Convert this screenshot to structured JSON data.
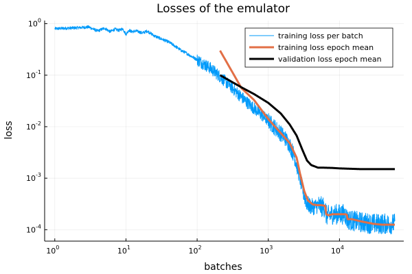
{
  "chart_data": {
    "type": "line",
    "title": "Losses of the emulator",
    "xlabel": "batches",
    "ylabel": "loss",
    "xscale": "log",
    "yscale": "log",
    "xlim": [
      0.72,
      80000
    ],
    "ylim": [
      6e-05,
      1.15
    ],
    "grid": true,
    "legend_position": "top-right",
    "xticks": [
      {
        "base": "10",
        "exp": "0",
        "value": 1
      },
      {
        "base": "10",
        "exp": "1",
        "value": 10
      },
      {
        "base": "10",
        "exp": "2",
        "value": 100
      },
      {
        "base": "10",
        "exp": "3",
        "value": 1000
      },
      {
        "base": "10",
        "exp": "4",
        "value": 10000
      }
    ],
    "yticks": [
      {
        "base": "10",
        "exp": "0",
        "value": 1
      },
      {
        "base": "10",
        "exp": "-1",
        "value": 0.1
      },
      {
        "base": "10",
        "exp": "-2",
        "value": 0.01
      },
      {
        "base": "10",
        "exp": "-3",
        "value": 0.001
      },
      {
        "base": "10",
        "exp": "-4",
        "value": 0.0001
      }
    ],
    "series": [
      {
        "name": "training loss per batch",
        "color": "#009AFA",
        "width": 1,
        "noise": true,
        "x": [
          1,
          2,
          3,
          4,
          5,
          6,
          7,
          8,
          9,
          10,
          11,
          12,
          14,
          17,
          20,
          25,
          30,
          40,
          50,
          60,
          70,
          80,
          100,
          120,
          150,
          200,
          250,
          300,
          400,
          500,
          700,
          1000,
          1300,
          1700,
          2000,
          2300,
          2600,
          2900,
          3200,
          3500,
          4000,
          4500,
          5000,
          5500,
          6300,
          6500,
          7000,
          8000,
          9000,
          10000,
          11000,
          12000,
          13000,
          14000,
          15000,
          20000,
          30000,
          45000,
          60000
        ],
        "y": [
          0.8,
          0.83,
          0.86,
          0.72,
          0.82,
          0.7,
          0.78,
          0.74,
          0.8,
          0.62,
          0.75,
          0.7,
          0.72,
          0.66,
          0.72,
          0.58,
          0.52,
          0.44,
          0.36,
          0.3,
          0.27,
          0.24,
          0.2,
          0.17,
          0.14,
          0.1,
          0.075,
          0.06,
          0.04,
          0.03,
          0.02,
          0.013,
          0.009,
          0.0062,
          0.0044,
          0.0028,
          0.0015,
          0.0008,
          0.00045,
          0.00032,
          0.00028,
          0.00028,
          0.0003,
          0.00028,
          0.00027,
          0.00019,
          0.00019,
          0.0002,
          0.0002,
          0.0002,
          0.0002,
          0.0002,
          0.000155,
          0.000155,
          0.00015,
          0.00014,
          0.00013,
          0.00013,
          0.00013
        ]
      },
      {
        "name": "training loss epoch mean",
        "color": "#E26F46",
        "width": 3,
        "noise": false,
        "x": [
          210,
          420,
          630,
          1000,
          1500,
          2000,
          2500,
          2800,
          3200,
          3600,
          4200,
          4800,
          5500,
          6300,
          6500,
          7000,
          8000,
          10000,
          12000,
          12700,
          13000,
          15000,
          20000,
          30000,
          40000,
          60000
        ],
        "y": [
          0.3,
          0.056,
          0.033,
          0.014,
          0.0075,
          0.0048,
          0.0025,
          0.0012,
          0.00056,
          0.00037,
          0.00031,
          0.0003,
          0.0003,
          0.00029,
          0.0002,
          0.00019,
          0.0002,
          0.0002,
          0.0002,
          0.000195,
          0.00016,
          0.00016,
          0.000145,
          0.00013,
          0.000125,
          0.000125
        ]
      },
      {
        "name": "validation loss epoch mean",
        "color": "#000000",
        "width": 3,
        "noise": false,
        "x": [
          210,
          420,
          630,
          1000,
          1500,
          2000,
          2500,
          3000,
          3500,
          4000,
          5000,
          6000,
          8000,
          10000,
          20000,
          30000,
          60000
        ],
        "y": [
          0.1,
          0.058,
          0.043,
          0.029,
          0.018,
          0.011,
          0.0067,
          0.0036,
          0.0022,
          0.0018,
          0.0016,
          0.0016,
          0.00158,
          0.00155,
          0.0015,
          0.0015,
          0.0015
        ]
      }
    ]
  }
}
